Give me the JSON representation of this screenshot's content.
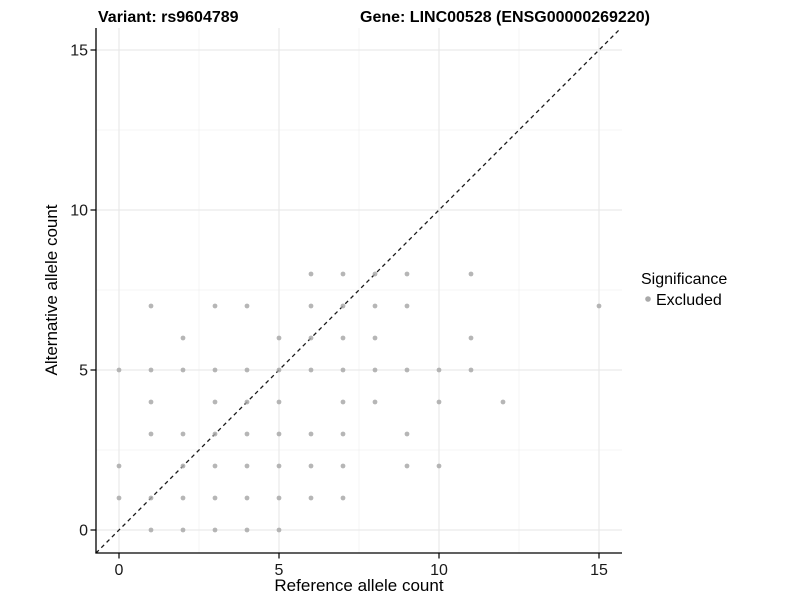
{
  "titles": {
    "variant": "Variant: rs9604789",
    "gene": "Gene: LINC00528 (ENSG00000269220)"
  },
  "legend": {
    "title": "Significance",
    "items": [
      {
        "label": "Excluded",
        "color": "#a9a9a9"
      }
    ]
  },
  "chart_data": {
    "type": "scatter",
    "title_left": "Variant: rs9604789",
    "title_right": "Gene: LINC00528 (ENSG00000269220)",
    "xlabel": "Reference allele count",
    "ylabel": "Alternative allele count",
    "xlim": [
      -0.75,
      15.75
    ],
    "ylim": [
      -0.75,
      15.75
    ],
    "x_ticks": [
      0,
      5,
      10,
      15
    ],
    "y_ticks": [
      0,
      5,
      10,
      15
    ],
    "grid": true,
    "legend_position": "right",
    "reference_line": {
      "type": "identity",
      "slope": 1,
      "intercept": 0,
      "style": "dashed",
      "color": "#1a1a1a"
    },
    "series": [
      {
        "name": "Excluded",
        "color": "#a9a9a9",
        "opacity": 0.85,
        "points": [
          [
            1,
            0
          ],
          [
            2,
            0
          ],
          [
            3,
            0
          ],
          [
            4,
            0
          ],
          [
            5,
            0
          ],
          [
            0,
            1
          ],
          [
            1,
            1
          ],
          [
            2,
            1
          ],
          [
            3,
            1
          ],
          [
            4,
            1
          ],
          [
            5,
            1
          ],
          [
            6,
            1
          ],
          [
            7,
            1
          ],
          [
            0,
            2
          ],
          [
            2,
            2
          ],
          [
            3,
            2
          ],
          [
            4,
            2
          ],
          [
            5,
            2
          ],
          [
            6,
            2
          ],
          [
            7,
            2
          ],
          [
            9,
            2
          ],
          [
            10,
            2
          ],
          [
            1,
            3
          ],
          [
            2,
            3
          ],
          [
            3,
            3
          ],
          [
            4,
            3
          ],
          [
            5,
            3
          ],
          [
            6,
            3
          ],
          [
            7,
            3
          ],
          [
            9,
            3
          ],
          [
            1,
            4
          ],
          [
            3,
            4
          ],
          [
            4,
            4
          ],
          [
            5,
            4
          ],
          [
            7,
            4
          ],
          [
            8,
            4
          ],
          [
            10,
            4
          ],
          [
            12,
            4
          ],
          [
            0,
            5
          ],
          [
            1,
            5
          ],
          [
            2,
            5
          ],
          [
            3,
            5
          ],
          [
            4,
            5
          ],
          [
            5,
            5
          ],
          [
            6,
            5
          ],
          [
            7,
            5
          ],
          [
            8,
            5
          ],
          [
            9,
            5
          ],
          [
            10,
            5
          ],
          [
            11,
            5
          ],
          [
            2,
            6
          ],
          [
            5,
            6
          ],
          [
            6,
            6
          ],
          [
            7,
            6
          ],
          [
            8,
            6
          ],
          [
            11,
            6
          ],
          [
            1,
            7
          ],
          [
            3,
            7
          ],
          [
            4,
            7
          ],
          [
            6,
            7
          ],
          [
            7,
            7
          ],
          [
            8,
            7
          ],
          [
            9,
            7
          ],
          [
            15,
            7
          ],
          [
            6,
            8
          ],
          [
            7,
            8
          ],
          [
            8,
            8
          ],
          [
            9,
            8
          ],
          [
            11,
            8
          ]
        ]
      }
    ],
    "colors": {
      "point": "#a9a9a9",
      "major_grid": "#e6e6e6",
      "minor_grid": "#f2f2f2",
      "axis_line": "#000000",
      "reference_line": "#1a1a1a"
    }
  }
}
